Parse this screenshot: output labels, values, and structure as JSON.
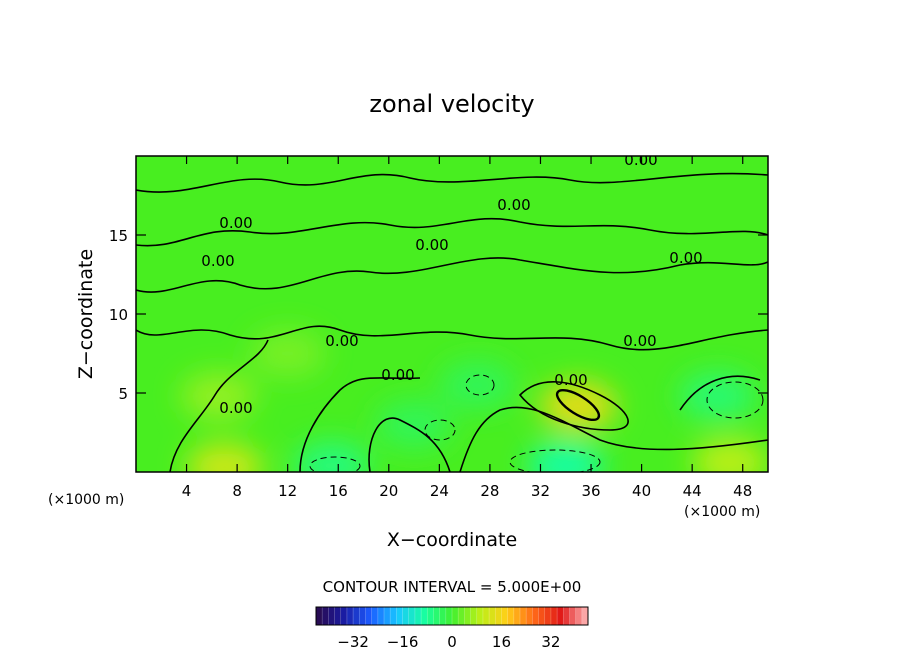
{
  "chart_data": {
    "type": "heatmap",
    "title": "zonal velocity",
    "xlabel": "X−coordinate",
    "ylabel": "Z−coordinate",
    "x_unit": "(×1000 m)",
    "x_unit_right": "(×1000 m)",
    "xlim": [
      0,
      50
    ],
    "ylim": [
      0,
      20
    ],
    "x_ticks": [
      "4",
      "8",
      "12",
      "16",
      "20",
      "24",
      "28",
      "32",
      "36",
      "40",
      "44",
      "48"
    ],
    "y_ticks": [
      "5",
      "10",
      "15"
    ],
    "contour_interval_text": "CONTOUR INTERVAL = 5.000E+00",
    "contour_labels": [
      "0.00",
      "0.00",
      "0.00",
      "0.00",
      "0.00",
      "0.00",
      "0.00",
      "0.00",
      "0.00",
      "0.00",
      "0.00"
    ],
    "colorbar": {
      "range": [
        -44,
        44
      ],
      "ticks": [
        "−32",
        "−16",
        "0",
        "16",
        "32"
      ],
      "colors": [
        "#2a0a4a",
        "#1a1aa0",
        "#1c5cff",
        "#18c8ff",
        "#18ffa0",
        "#40f030",
        "#b8f018",
        "#ffd018",
        "#ff6a18",
        "#e01818",
        "#ffb8b8"
      ]
    },
    "field_values": {
      "background": 1,
      "features": [
        {
          "x": 6.5,
          "z": 4.8,
          "value": 6
        },
        {
          "x": 35,
          "z": 4.2,
          "value": 14
        },
        {
          "x": 46,
          "z": 4.8,
          "value": -5
        },
        {
          "x": 34,
          "z": 0.4,
          "value": -9
        },
        {
          "x": 15.5,
          "z": 0.4,
          "value": -6
        },
        {
          "x": 7,
          "z": 0.3,
          "value": 11
        },
        {
          "x": 47,
          "z": 0.6,
          "value": 9
        },
        {
          "x": 12,
          "z": 7.5,
          "value": 4
        },
        {
          "x": 22,
          "z": 3.0,
          "value": -3
        },
        {
          "x": 27,
          "z": 5.5,
          "value": -3
        }
      ]
    }
  }
}
